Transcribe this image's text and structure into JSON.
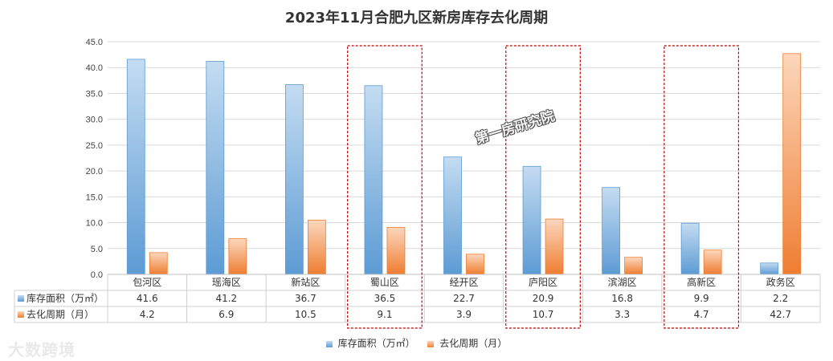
{
  "chart_data": {
    "type": "bar",
    "title": "2023年11月合肥九区新房库存去化周期",
    "categories": [
      "包河区",
      "瑶海区",
      "新站区",
      "蜀山区",
      "经开区",
      "庐阳区",
      "滨湖区",
      "高新区",
      "政务区"
    ],
    "series": [
      {
        "name": "库存面积（万㎡）",
        "values": [
          41.6,
          41.2,
          36.7,
          36.5,
          22.7,
          20.9,
          16.8,
          9.9,
          2.2
        ]
      },
      {
        "name": "去化周期（月）",
        "values": [
          4.2,
          6.9,
          10.5,
          9.1,
          3.9,
          10.7,
          3.3,
          4.7,
          42.7
        ]
      }
    ],
    "yticks": [
      "0.0",
      "5.0",
      "10.0",
      "15.0",
      "20.0",
      "25.0",
      "30.0",
      "35.0",
      "40.0",
      "45.0"
    ],
    "ylim": [
      0,
      45
    ],
    "grid": true,
    "legend": "bottom",
    "data_table": true,
    "highlighted_categories": [
      "蜀山区",
      "庐阳区",
      "高新区"
    ],
    "colors": {
      "series1_light": "#c4dcf1",
      "series1_dark": "#5c9bd4",
      "series2_light": "#fbd7bd",
      "series2_dark": "#ef7d31",
      "highlight": "#c00000",
      "grid": "#d9d9d9"
    }
  },
  "watermark": {
    "text": "大数跨境"
  },
  "stamp": {
    "text": "第一房研究院"
  }
}
